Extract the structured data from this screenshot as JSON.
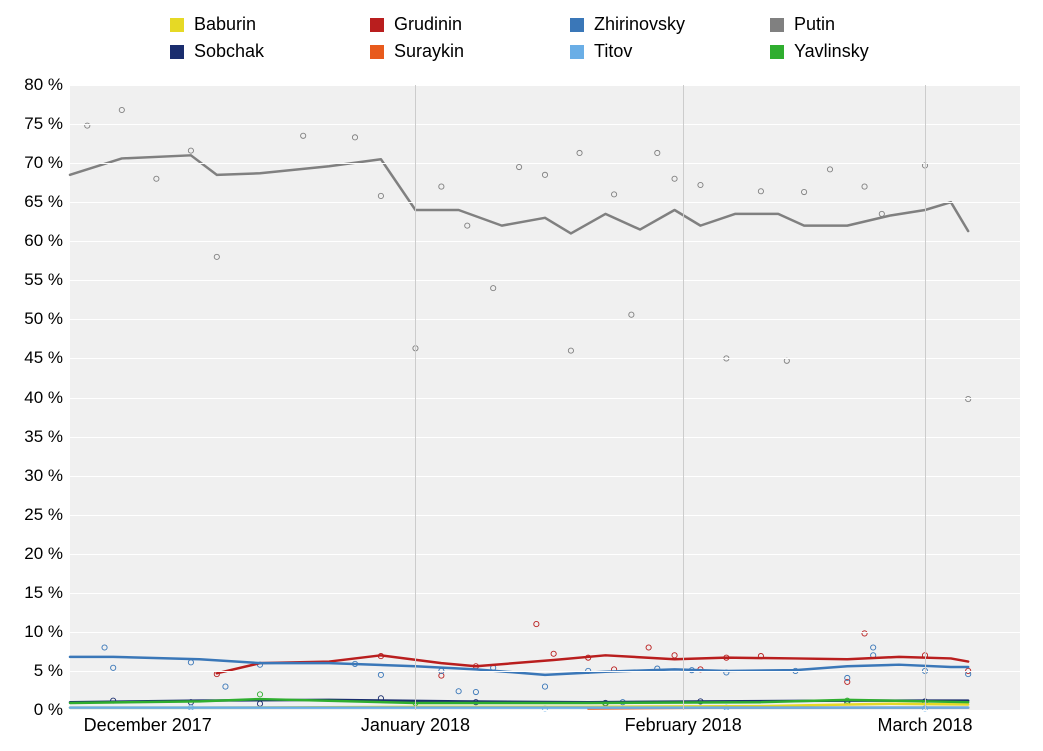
{
  "chart": {
    "type": "line+scatter",
    "background_color": "#f0f0f0",
    "page_background": "#ffffff",
    "grid_color": "#ffffff",
    "vgrid_color": "#cccccc",
    "label_fontsize": 17,
    "legend_fontsize": 18,
    "line_width": 2.5,
    "marker_radius": 2.6,
    "marker_stroke_width": 0.9,
    "y_axis": {
      "min": 0,
      "max": 80,
      "tick_step": 5,
      "tick_suffix": " %",
      "ticks": [
        0,
        5,
        10,
        15,
        20,
        25,
        30,
        35,
        40,
        45,
        50,
        55,
        60,
        65,
        70,
        75,
        80
      ]
    },
    "x_axis": {
      "min": 0,
      "max": 110,
      "ticks": [
        {
          "x": 9,
          "label": "December 2017",
          "grid": false
        },
        {
          "x": 40,
          "label": "January 2018",
          "grid": true
        },
        {
          "x": 71,
          "label": "February 2018",
          "grid": true
        },
        {
          "x": 99,
          "label": "March 2018",
          "grid": true
        }
      ]
    },
    "series": [
      {
        "name": "Baburin",
        "color": "#e6d925",
        "line": [
          [
            0,
            0.3
          ],
          [
            15,
            0.3
          ],
          [
            40,
            0.4
          ],
          [
            60,
            0.4
          ],
          [
            80,
            0.5
          ],
          [
            95,
            0.8
          ],
          [
            104,
            0.7
          ]
        ],
        "points": []
      },
      {
        "name": "Grudinin",
        "color": "#b91e1e",
        "line": [
          [
            17,
            4.7
          ],
          [
            22,
            6.0
          ],
          [
            30,
            6.2
          ],
          [
            36,
            7.0
          ],
          [
            43,
            6.0
          ],
          [
            47,
            5.6
          ],
          [
            56,
            6.4
          ],
          [
            62,
            7.0
          ],
          [
            70,
            6.5
          ],
          [
            76,
            6.7
          ],
          [
            84,
            6.6
          ],
          [
            90,
            6.5
          ],
          [
            96,
            6.8
          ],
          [
            102,
            6.6
          ],
          [
            104,
            6.2
          ]
        ],
        "points": [
          [
            17,
            4.6
          ],
          [
            36,
            6.9
          ],
          [
            43,
            4.4
          ],
          [
            47,
            5.6
          ],
          [
            54,
            11.0
          ],
          [
            56,
            7.2
          ],
          [
            60,
            6.7
          ],
          [
            63,
            5.2
          ],
          [
            67,
            8.0
          ],
          [
            70,
            7.0
          ],
          [
            73,
            5.2
          ],
          [
            76,
            6.7
          ],
          [
            80,
            6.9
          ],
          [
            90,
            3.6
          ],
          [
            92,
            9.8
          ],
          [
            99,
            7.0
          ],
          [
            104,
            5.0
          ]
        ]
      },
      {
        "name": "Zhirinovsky",
        "color": "#3a77b8",
        "line": [
          [
            0,
            6.8
          ],
          [
            5,
            6.8
          ],
          [
            15,
            6.5
          ],
          [
            22,
            6.0
          ],
          [
            30,
            6.0
          ],
          [
            40,
            5.6
          ],
          [
            47,
            5.2
          ],
          [
            55,
            4.5
          ],
          [
            62,
            4.9
          ],
          [
            70,
            5.2
          ],
          [
            76,
            5.0
          ],
          [
            84,
            5.1
          ],
          [
            90,
            5.6
          ],
          [
            96,
            5.8
          ],
          [
            102,
            5.5
          ],
          [
            104,
            5.5
          ]
        ],
        "points": [
          [
            4,
            8.0
          ],
          [
            5,
            5.4
          ],
          [
            14,
            6.1
          ],
          [
            18,
            3.0
          ],
          [
            22,
            5.8
          ],
          [
            33,
            5.9
          ],
          [
            36,
            4.5
          ],
          [
            43,
            5.0
          ],
          [
            45,
            2.4
          ],
          [
            47,
            2.3
          ],
          [
            49,
            5.4
          ],
          [
            55,
            3.0
          ],
          [
            60,
            5.0
          ],
          [
            64,
            1.0
          ],
          [
            68,
            5.3
          ],
          [
            72,
            5.1
          ],
          [
            76,
            4.8
          ],
          [
            84,
            5.0
          ],
          [
            90,
            4.1
          ],
          [
            93,
            8.0
          ],
          [
            93,
            7.0
          ],
          [
            99,
            5.0
          ],
          [
            104,
            4.6
          ]
        ]
      },
      {
        "name": "Putin",
        "color": "#808080",
        "line": [
          [
            0,
            68.5
          ],
          [
            6,
            70.6
          ],
          [
            14,
            71.0
          ],
          [
            17,
            68.5
          ],
          [
            22,
            68.7
          ],
          [
            30,
            69.6
          ],
          [
            36,
            70.5
          ],
          [
            40,
            64.0
          ],
          [
            45,
            64.0
          ],
          [
            50,
            62.0
          ],
          [
            55,
            63.0
          ],
          [
            58,
            61.0
          ],
          [
            62,
            63.5
          ],
          [
            66,
            61.5
          ],
          [
            70,
            64.0
          ],
          [
            73,
            62.0
          ],
          [
            77,
            63.5
          ],
          [
            82,
            63.5
          ],
          [
            85,
            62.0
          ],
          [
            90,
            62.0
          ],
          [
            95,
            63.3
          ],
          [
            99,
            64.0
          ],
          [
            102,
            65.0
          ],
          [
            104,
            61.3
          ]
        ],
        "points": [
          [
            2,
            74.8
          ],
          [
            6,
            76.8
          ],
          [
            10,
            68.0
          ],
          [
            14,
            71.6
          ],
          [
            17,
            58.0
          ],
          [
            27,
            73.5
          ],
          [
            33,
            73.3
          ],
          [
            36,
            65.8
          ],
          [
            40,
            46.3
          ],
          [
            43,
            67.0
          ],
          [
            46,
            62.0
          ],
          [
            49,
            54.0
          ],
          [
            52,
            69.5
          ],
          [
            55,
            68.5
          ],
          [
            58,
            46.0
          ],
          [
            59,
            71.3
          ],
          [
            63,
            66.0
          ],
          [
            65,
            50.6
          ],
          [
            68,
            71.3
          ],
          [
            70,
            68.0
          ],
          [
            73,
            67.2
          ],
          [
            76,
            45.0
          ],
          [
            80,
            66.4
          ],
          [
            83,
            44.7
          ],
          [
            85,
            66.3
          ],
          [
            88,
            69.2
          ],
          [
            92,
            67.0
          ],
          [
            94,
            63.5
          ],
          [
            99,
            69.7
          ],
          [
            104,
            39.8
          ]
        ]
      },
      {
        "name": "Sobchak",
        "color": "#1a2d6e",
        "line": [
          [
            0,
            1.0
          ],
          [
            15,
            1.2
          ],
          [
            30,
            1.3
          ],
          [
            45,
            1.1
          ],
          [
            60,
            1.0
          ],
          [
            75,
            1.1
          ],
          [
            90,
            1.2
          ],
          [
            104,
            1.2
          ]
        ],
        "points": [
          [
            5,
            1.2
          ],
          [
            14,
            1.0
          ],
          [
            22,
            0.8
          ],
          [
            36,
            1.5
          ],
          [
            47,
            1.0
          ],
          [
            62,
            0.9
          ],
          [
            73,
            1.1
          ],
          [
            90,
            1.0
          ],
          [
            99,
            1.1
          ]
        ]
      },
      {
        "name": "Suraykin",
        "color": "#e85a1c",
        "line": [
          [
            60,
            0.2
          ],
          [
            75,
            0.3
          ],
          [
            90,
            0.3
          ],
          [
            104,
            0.3
          ]
        ],
        "points": []
      },
      {
        "name": "Titov",
        "color": "#6aaee6",
        "line": [
          [
            0,
            0.3
          ],
          [
            30,
            0.3
          ],
          [
            60,
            0.3
          ],
          [
            90,
            0.3
          ],
          [
            104,
            0.3
          ]
        ],
        "points": [
          [
            14,
            0.3
          ],
          [
            55,
            0.2
          ],
          [
            76,
            0.3
          ],
          [
            99,
            0.2
          ]
        ]
      },
      {
        "name": "Yavlinsky",
        "color": "#2fae2f",
        "line": [
          [
            0,
            0.9
          ],
          [
            15,
            1.1
          ],
          [
            22,
            1.4
          ],
          [
            40,
            0.9
          ],
          [
            60,
            0.9
          ],
          [
            80,
            1.0
          ],
          [
            90,
            1.3
          ],
          [
            104,
            1.0
          ]
        ],
        "points": [
          [
            22,
            2.0
          ],
          [
            40,
            0.9
          ],
          [
            62,
            0.8
          ],
          [
            90,
            1.2
          ]
        ]
      }
    ]
  },
  "legend": {
    "items": [
      {
        "label": "Baburin",
        "color": "#e6d925"
      },
      {
        "label": "Grudinin",
        "color": "#b91e1e"
      },
      {
        "label": "Zhirinovsky",
        "color": "#3a77b8"
      },
      {
        "label": "Putin",
        "color": "#808080"
      },
      {
        "label": "Sobchak",
        "color": "#1a2d6e"
      },
      {
        "label": "Suraykin",
        "color": "#e85a1c"
      },
      {
        "label": "Titov",
        "color": "#6aaee6"
      },
      {
        "label": "Yavlinsky",
        "color": "#2fae2f"
      }
    ]
  }
}
